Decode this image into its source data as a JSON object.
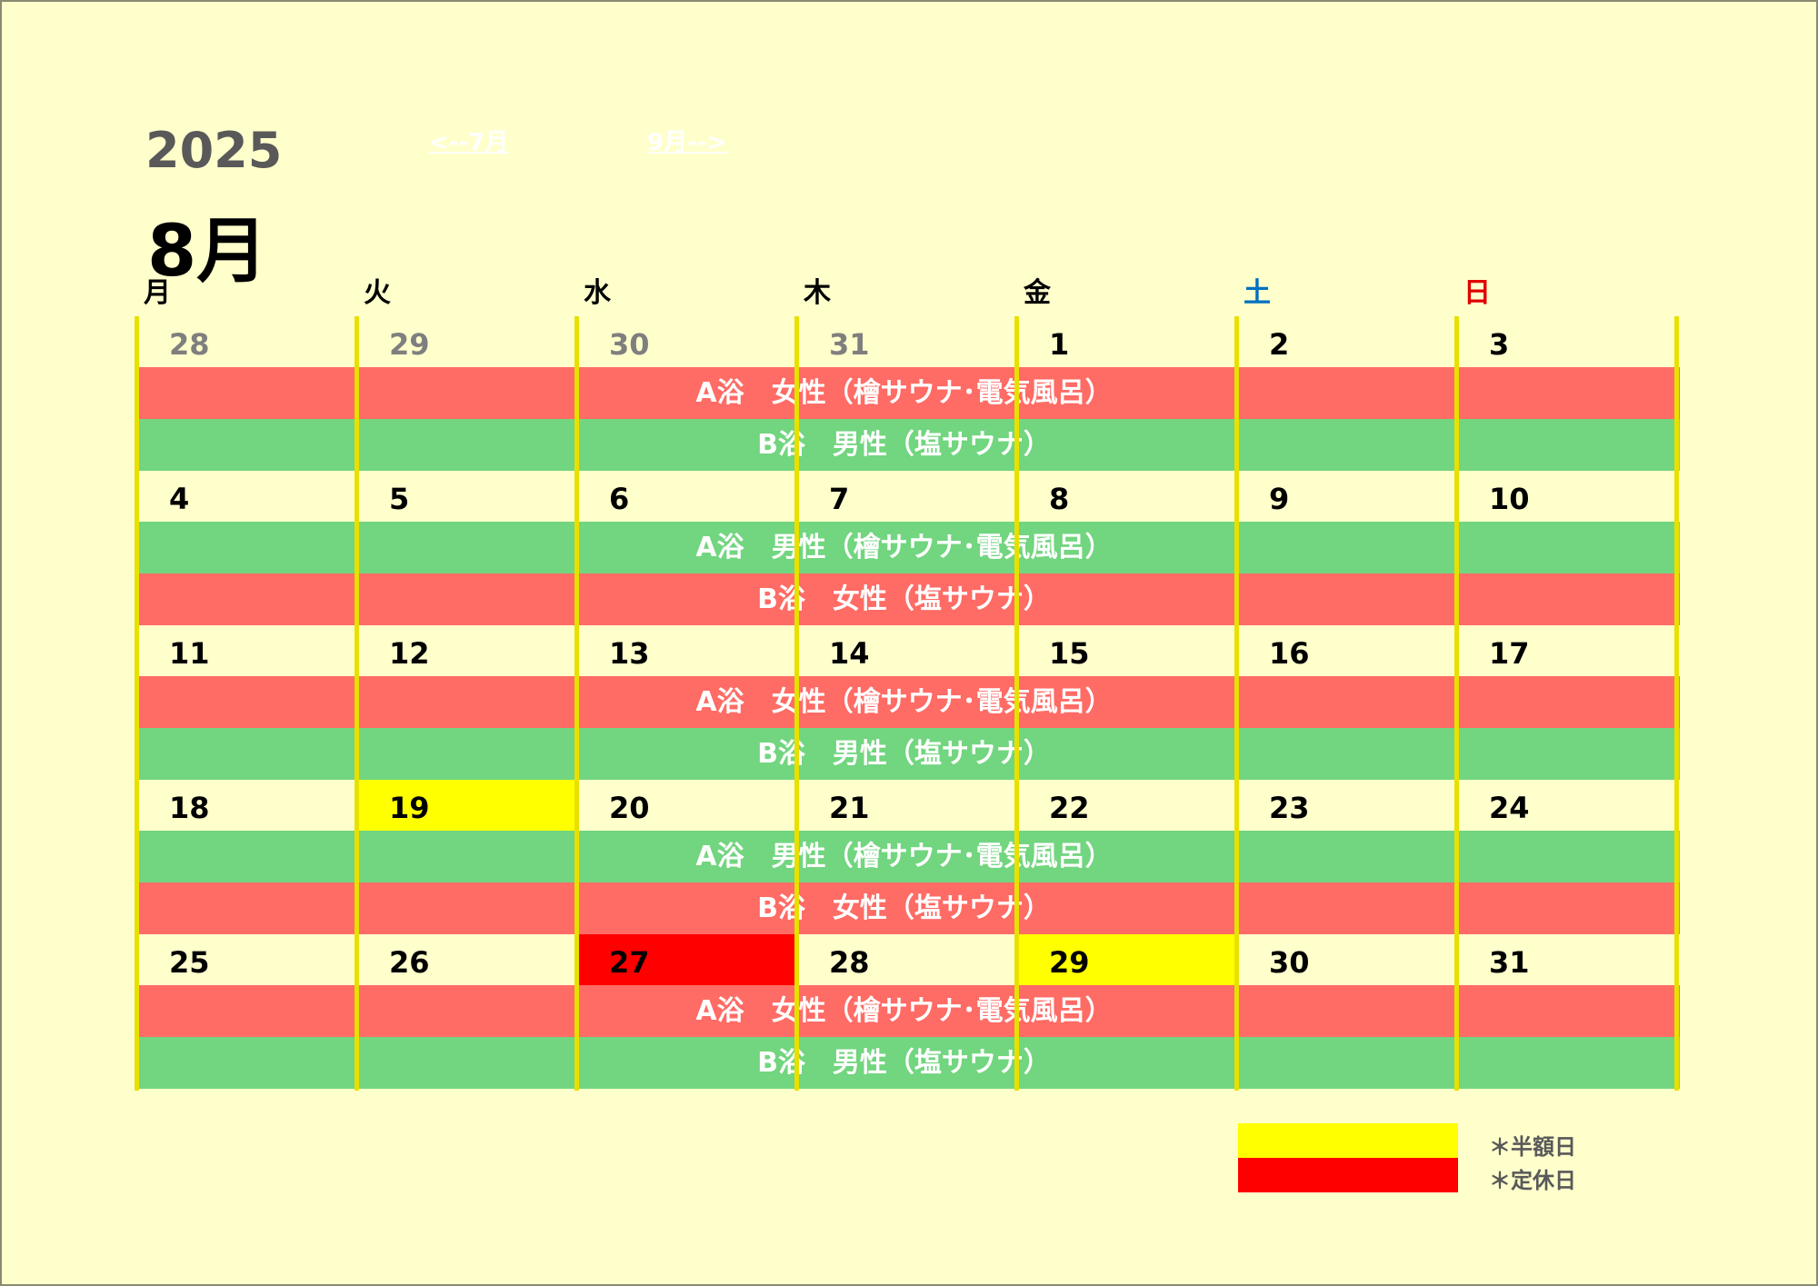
{
  "header": {
    "year": "2025",
    "month": "8月",
    "prev_link": "<--7月",
    "next_link": "9月-->"
  },
  "weekdays": [
    "月",
    "火",
    "水",
    "木",
    "金",
    "土",
    "日"
  ],
  "weekday_colors": [
    "#000000",
    "#000000",
    "#000000",
    "#000000",
    "#000000",
    "#0070c0",
    "#e00000"
  ],
  "weeks": [
    {
      "days": [
        "28",
        "29",
        "30",
        "31",
        "1",
        "2",
        "3"
      ],
      "band1": {
        "color": "red",
        "label": "A浴　女性（檜サウナ･電気風呂）"
      },
      "band2": {
        "color": "green",
        "label": "B浴　男性（塩サウナ）"
      }
    },
    {
      "days": [
        "4",
        "5",
        "6",
        "7",
        "8",
        "9",
        "10"
      ],
      "band1": {
        "color": "green",
        "label": "A浴　男性（檜サウナ･電気風呂）"
      },
      "band2": {
        "color": "red",
        "label": "B浴　女性（塩サウナ）"
      }
    },
    {
      "days": [
        "11",
        "12",
        "13",
        "14",
        "15",
        "16",
        "17"
      ],
      "band1": {
        "color": "red",
        "label": "A浴　女性（檜サウナ･電気風呂）"
      },
      "band2": {
        "color": "green",
        "label": "B浴　男性（塩サウナ）"
      }
    },
    {
      "days": [
        "18",
        "19",
        "20",
        "21",
        "22",
        "23",
        "24"
      ],
      "band1": {
        "color": "green",
        "label": "A浴　男性（檜サウナ･電気風呂）"
      },
      "band2": {
        "color": "red",
        "label": "B浴　女性（塩サウナ）"
      }
    },
    {
      "days": [
        "25",
        "26",
        "27",
        "28",
        "29",
        "30",
        "31"
      ],
      "band1": {
        "color": "red",
        "label": "A浴　女性（檜サウナ･電気風呂）"
      },
      "band2": {
        "color": "green",
        "label": "B浴　男性（塩サウナ）"
      }
    }
  ],
  "muted_days": [
    "0-0",
    "0-1",
    "0-2",
    "0-3"
  ],
  "half_price_days": [
    "3-1",
    "4-4"
  ],
  "closed_days": [
    "4-2"
  ],
  "legend": {
    "half_price": "＊半額日",
    "closed": "＊定休日",
    "half_color": "#ffff00",
    "closed_color": "#ff0000"
  }
}
